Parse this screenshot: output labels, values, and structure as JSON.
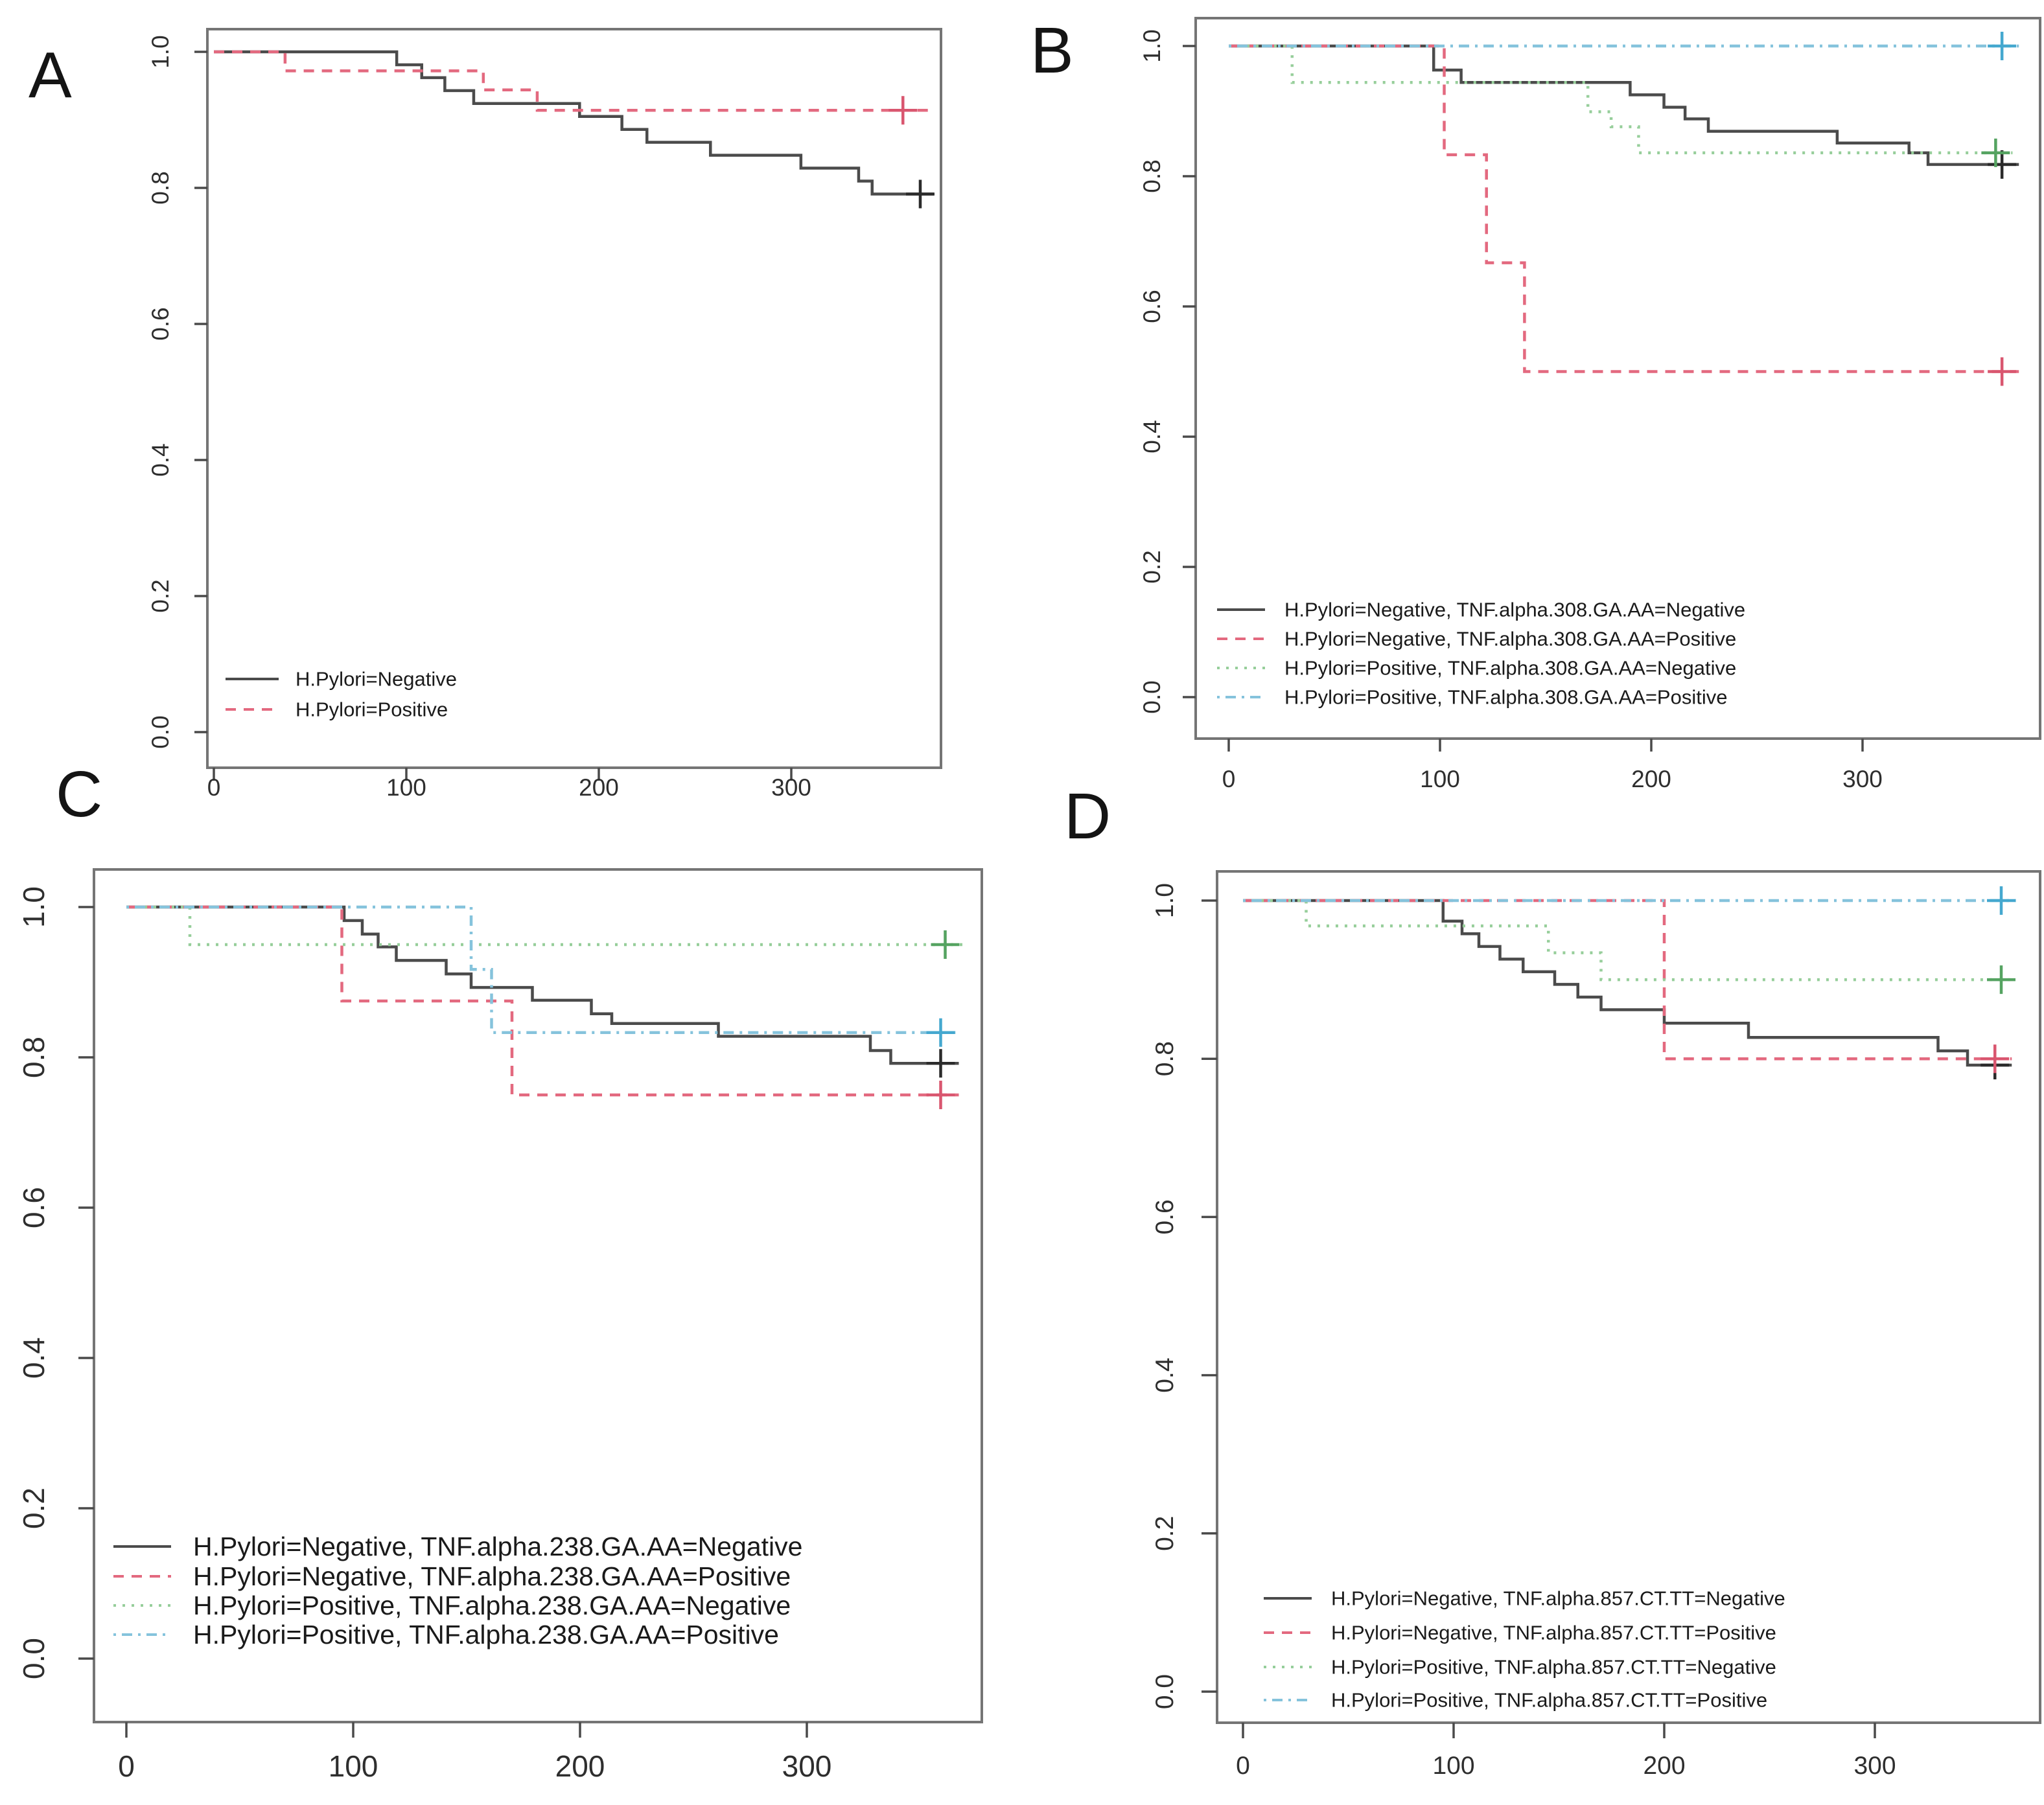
{
  "figure": {
    "background": "#ffffff",
    "box_color": "#757575",
    "tick_color": "#4a4a4a",
    "tick_label_color": "#2e2e2e",
    "legend_text_color": "#1a1a1a"
  },
  "panels": [
    {
      "label": "A"
    },
    {
      "label": "B"
    },
    {
      "label": "C"
    },
    {
      "label": "D"
    }
  ],
  "chart_data": [
    {
      "id": "A",
      "panel_label": "A",
      "type": "line",
      "subtype": "kaplan-meier-step",
      "title": "",
      "xlabel": "",
      "ylabel": "",
      "xlim": [
        -10,
        378
      ],
      "ylim": [
        0.0,
        1.04
      ],
      "grid": false,
      "legend_position": "bottom-left",
      "xticks": [
        0,
        100,
        200,
        300
      ],
      "xticklabels": [
        "0",
        "100",
        "200",
        "300"
      ],
      "yticks": [
        1.0,
        0.8,
        0.6,
        0.4,
        0.2,
        0.0
      ],
      "yticklabels": [
        "1.0",
        "0.8",
        "0.6",
        "0.4",
        "0.2",
        "0.0"
      ],
      "series": [
        {
          "name": "H.Pylori=Negative",
          "style": "solid",
          "color": "#4b4b4b",
          "censor_color": "#2b2b2b",
          "points": [
            [
              0,
              1.0
            ],
            [
              95,
              0.981
            ],
            [
              108,
              0.962
            ],
            [
              120,
              0.943
            ],
            [
              135,
              0.924
            ],
            [
              190,
              0.905
            ],
            [
              212,
              0.886
            ],
            [
              225,
              0.867
            ],
            [
              258,
              0.848
            ],
            [
              305,
              0.829
            ],
            [
              335,
              0.81
            ],
            [
              342,
              0.791
            ]
          ],
          "end_x": 374,
          "censors": [
            [
              367,
              0.791
            ]
          ]
        },
        {
          "name": "H.Pylori=Positive",
          "style": "dashed",
          "color": "#e3697f",
          "censor_color": "#d9566f",
          "points": [
            [
              0,
              1.0
            ],
            [
              37,
              0.972
            ],
            [
              140,
              0.944
            ],
            [
              168,
              0.914
            ]
          ],
          "end_x": 372,
          "censors": [
            [
              358,
              0.914
            ]
          ]
        }
      ]
    },
    {
      "id": "B",
      "panel_label": "B",
      "type": "line",
      "subtype": "kaplan-meier-step",
      "title": "",
      "xlabel": "",
      "ylabel": "",
      "xlim": [
        -10,
        384
      ],
      "ylim": [
        0.0,
        1.04
      ],
      "grid": false,
      "legend_position": "bottom-left",
      "xticks": [
        0,
        100,
        200,
        300
      ],
      "xticklabels": [
        "0",
        "100",
        "200",
        "300"
      ],
      "yticks": [
        1.0,
        0.8,
        0.6,
        0.4,
        0.2,
        0.0
      ],
      "yticklabels": [
        "1.0",
        "0.8",
        "0.6",
        "0.4",
        "0.2",
        "0.0"
      ],
      "series": [
        {
          "name": "H.Pylori=Negative, TNF.alpha.308.GA.AA=Negative",
          "style": "solid",
          "color": "#4b4b4b",
          "censor_color": "#2b2b2b",
          "points": [
            [
              0,
              1.0
            ],
            [
              97,
              0.963
            ],
            [
              110,
              0.944
            ],
            [
              190,
              0.925
            ],
            [
              206,
              0.906
            ],
            [
              216,
              0.888
            ],
            [
              227,
              0.869
            ],
            [
              288,
              0.851
            ],
            [
              322,
              0.836
            ],
            [
              331,
              0.818
            ]
          ],
          "end_x": 374,
          "censors": [
            [
              366,
              0.818
            ]
          ]
        },
        {
          "name": "H.Pylori=Negative, TNF.alpha.308.GA.AA=Positive",
          "style": "dashed",
          "color": "#e3697f",
          "censor_color": "#d9566f",
          "points": [
            [
              0,
              1.0
            ],
            [
              102,
              0.833
            ],
            [
              122,
              0.667
            ],
            [
              140,
              0.5
            ]
          ],
          "end_x": 374,
          "censors": [
            [
              366,
              0.5
            ]
          ]
        },
        {
          "name": "H.Pylori=Positive, TNF.alpha.308.GA.AA=Negative",
          "style": "dotted",
          "color": "#96ce9a",
          "censor_color": "#55a361",
          "points": [
            [
              0,
              1.0
            ],
            [
              30,
              0.944
            ],
            [
              170,
              0.899
            ],
            [
              181,
              0.876
            ],
            [
              194,
              0.836
            ]
          ],
          "end_x": 371,
          "censors": [
            [
              363,
              0.836
            ]
          ]
        },
        {
          "name": "H.Pylori=Positive, TNF.alpha.308.GA.AA=Positive",
          "style": "dashdot",
          "color": "#85c3dc",
          "censor_color": "#45a8cf",
          "points": [
            [
              0,
              1.0
            ]
          ],
          "end_x": 374,
          "censors": [
            [
              366,
              1.0
            ]
          ]
        }
      ]
    },
    {
      "id": "C",
      "panel_label": "C",
      "type": "line",
      "subtype": "kaplan-meier-step",
      "title": "",
      "xlabel": "",
      "ylabel": "",
      "xlim": [
        -12,
        378
      ],
      "ylim": [
        0.0,
        1.04
      ],
      "grid": false,
      "legend_position": "bottom-left",
      "xticks": [
        0,
        100,
        200,
        300
      ],
      "xticklabels": [
        "0",
        "100",
        "200",
        "300"
      ],
      "yticks": [
        1.0,
        0.8,
        0.6,
        0.4,
        0.2,
        0.0
      ],
      "yticklabels": [
        "1.0",
        "0.8",
        "0.6",
        "0.4",
        "0.2",
        "0.0"
      ],
      "series": [
        {
          "name": "H.Pylori=Negative, TNF.alpha.238.GA.AA=Negative",
          "style": "solid",
          "color": "#4b4b4b",
          "censor_color": "#2b2b2b",
          "points": [
            [
              0,
              1.0
            ],
            [
              96,
              0.982
            ],
            [
              104,
              0.964
            ],
            [
              111,
              0.947
            ],
            [
              119,
              0.929
            ],
            [
              141,
              0.911
            ],
            [
              152,
              0.893
            ],
            [
              179,
              0.876
            ],
            [
              205,
              0.858
            ],
            [
              214,
              0.845
            ],
            [
              261,
              0.828
            ],
            [
              328,
              0.809
            ],
            [
              337,
              0.792
            ]
          ],
          "end_x": 367,
          "censors": [
            [
              359,
              0.792
            ]
          ]
        },
        {
          "name": "H.Pylori=Negative, TNF.alpha.238.GA.AA=Positive",
          "style": "dashed",
          "color": "#e3697f",
          "censor_color": "#d9566f",
          "points": [
            [
              0,
              1.0
            ],
            [
              95,
              0.875
            ],
            [
              170,
              0.75
            ]
          ],
          "end_x": 367,
          "censors": [
            [
              359,
              0.75
            ]
          ]
        },
        {
          "name": "H.Pylori=Positive, TNF.alpha.238.GA.AA=Negative",
          "style": "dotted",
          "color": "#96ce9a",
          "censor_color": "#55a361",
          "points": [
            [
              0,
              1.0
            ],
            [
              28,
              0.95
            ]
          ],
          "end_x": 369,
          "censors": [
            [
              361,
              0.95
            ]
          ]
        },
        {
          "name": "H.Pylori=Positive, TNF.alpha.238.GA.AA=Positive",
          "style": "dashdot",
          "color": "#85c3dc",
          "censor_color": "#45a8cf",
          "points": [
            [
              0,
              1.0
            ],
            [
              152,
              0.917
            ],
            [
              161,
              0.833
            ]
          ],
          "end_x": 367,
          "censors": [
            [
              359,
              0.833
            ]
          ]
        }
      ]
    },
    {
      "id": "D",
      "panel_label": "D",
      "type": "line",
      "subtype": "kaplan-meier-step",
      "title": "",
      "xlabel": "",
      "ylabel": "",
      "xlim": [
        -10,
        380
      ],
      "ylim": [
        0.0,
        1.04
      ],
      "grid": false,
      "legend_position": "bottom-left",
      "xticks": [
        0,
        100,
        200,
        300
      ],
      "xticklabels": [
        "0",
        "100",
        "200",
        "300"
      ],
      "yticks": [
        1.0,
        0.8,
        0.6,
        0.4,
        0.2,
        0.0
      ],
      "yticklabels": [
        "1.0",
        "0.8",
        "0.6",
        "0.4",
        "0.2",
        "0.0"
      ],
      "series": [
        {
          "name": "H.Pylori=Negative, TNF.alpha.857.CT.TT=Negative",
          "style": "solid",
          "color": "#4b4b4b",
          "censor_color": "#2b2b2b",
          "points": [
            [
              0,
              1.0
            ],
            [
              95,
              0.974
            ],
            [
              104,
              0.958
            ],
            [
              112,
              0.942
            ],
            [
              122,
              0.926
            ],
            [
              133,
              0.91
            ],
            [
              148,
              0.894
            ],
            [
              159,
              0.878
            ],
            [
              170,
              0.862
            ],
            [
              200,
              0.845
            ],
            [
              240,
              0.827
            ],
            [
              330,
              0.81
            ],
            [
              344,
              0.792
            ]
          ],
          "end_x": 365,
          "censors": [
            [
              357,
              0.792
            ]
          ]
        },
        {
          "name": "H.Pylori=Negative, TNF.alpha.857.CT.TT=Positive",
          "style": "dashed",
          "color": "#e3697f",
          "censor_color": "#d9566f",
          "points": [
            [
              0,
              1.0
            ],
            [
              200,
              0.8
            ]
          ],
          "end_x": 365,
          "censors": [
            [
              357,
              0.8
            ]
          ]
        },
        {
          "name": "H.Pylori=Positive, TNF.alpha.857.CT.TT=Negative",
          "style": "dotted",
          "color": "#96ce9a",
          "censor_color": "#55a361",
          "points": [
            [
              0,
              1.0
            ],
            [
              30,
              0.968
            ],
            [
              145,
              0.934
            ],
            [
              170,
              0.9
            ]
          ],
          "end_x": 367,
          "censors": [
            [
              360,
              0.9
            ]
          ]
        },
        {
          "name": "H.Pylori=Positive, TNF.alpha.857.CT.TT=Positive",
          "style": "dashdot",
          "color": "#85c3dc",
          "censor_color": "#45a8cf",
          "points": [
            [
              0,
              1.0
            ]
          ],
          "end_x": 367,
          "censors": [
            [
              360,
              1.0
            ]
          ]
        }
      ]
    }
  ]
}
